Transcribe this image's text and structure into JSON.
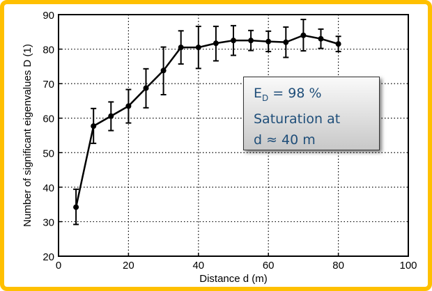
{
  "chart_data": {
    "type": "line",
    "title": "",
    "xlabel": "Distance d (m)",
    "ylabel": "Number of significant eigenvalues D (1)",
    "xlim": [
      0,
      100
    ],
    "ylim": [
      20,
      90
    ],
    "xticks": [
      "0",
      "20",
      "40",
      "60",
      "80",
      "100"
    ],
    "yticks": [
      "20",
      "30",
      "40",
      "50",
      "60",
      "70",
      "80",
      "90"
    ],
    "grid": true,
    "series": [
      {
        "name": "D",
        "x": [
          5,
          10,
          15,
          20,
          25,
          30,
          35,
          40,
          45,
          50,
          55,
          60,
          65,
          70,
          75,
          80
        ],
        "y": [
          34.2,
          57.7,
          60.6,
          63.5,
          68.7,
          73.8,
          80.5,
          80.5,
          81.7,
          82.5,
          82.5,
          82.2,
          82.0,
          84.0,
          83.0,
          81.5
        ],
        "err_low": [
          29.2,
          52.7,
          56.4,
          58.6,
          63.0,
          66.8,
          75.7,
          74.4,
          76.6,
          78.2,
          79.6,
          79.3,
          77.6,
          79.5,
          80.2,
          79.3
        ],
        "err_high": [
          39.4,
          62.8,
          64.7,
          68.3,
          74.3,
          80.6,
          85.3,
          86.6,
          86.6,
          86.8,
          85.4,
          85.2,
          86.4,
          88.6,
          85.8,
          83.7
        ]
      }
    ],
    "annotation": {
      "line1_main": "E",
      "line1_sub": "D",
      "line1_rest": " = 98 %",
      "line2": "Saturation at",
      "line3": "d ≈ 40 m"
    }
  },
  "colors": {
    "frame": "#ffc000",
    "annotation_text": "#1f4e79"
  }
}
